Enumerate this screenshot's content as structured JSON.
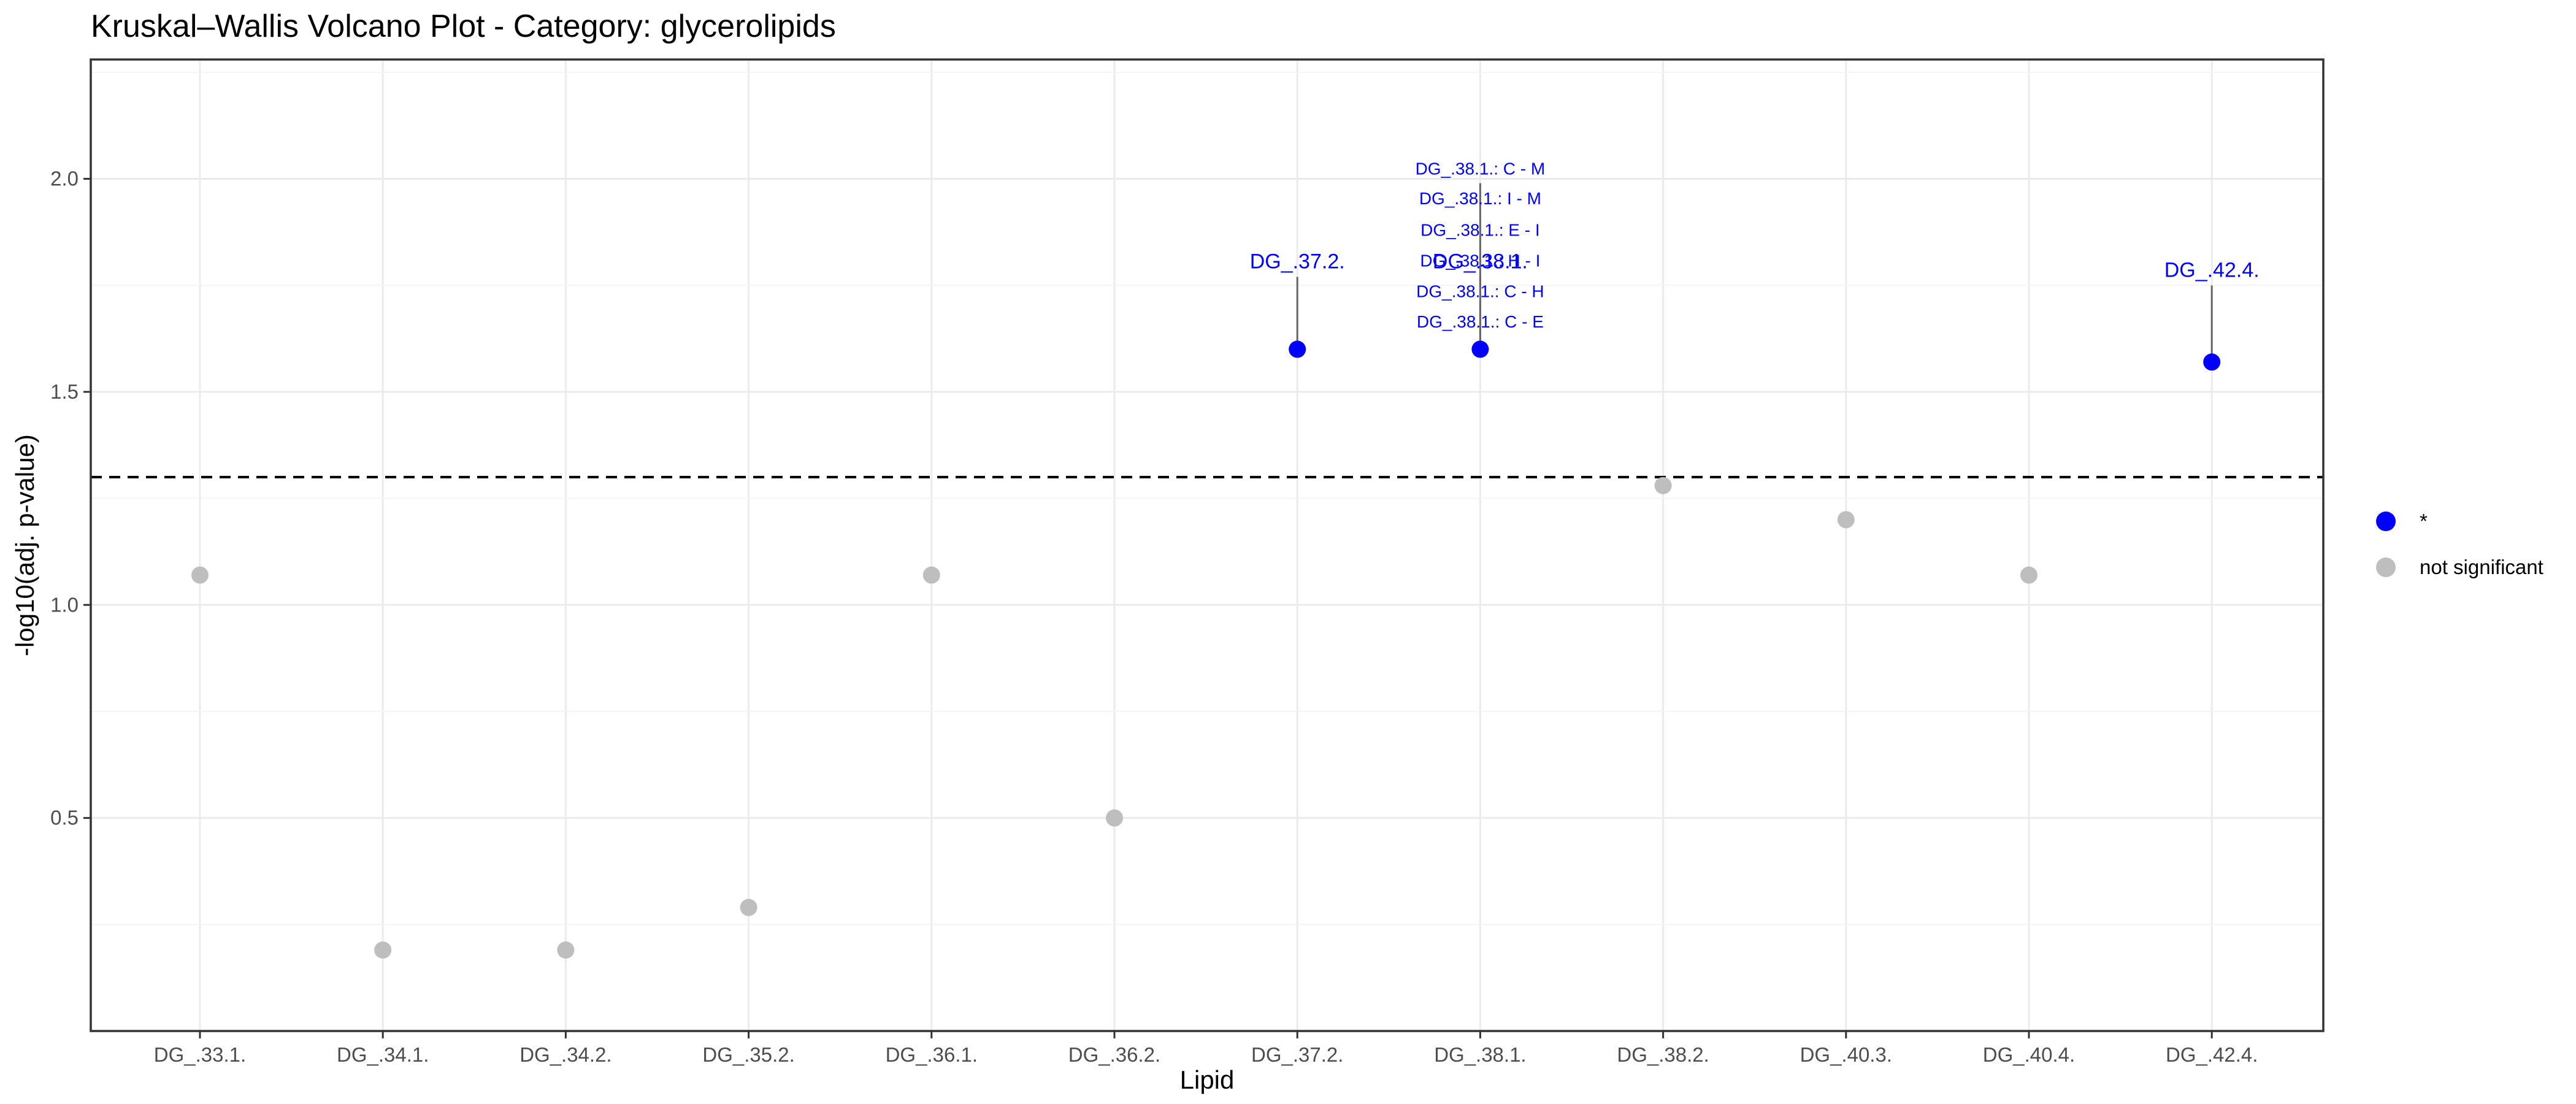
{
  "chart_data": {
    "type": "scatter",
    "title": "Kruskal–Wallis Volcano Plot - Category: glycerolipids",
    "xlabel": "Lipid",
    "ylabel": "-log10(adj. p-value)",
    "categories": [
      "DG_.33.1.",
      "DG_.34.1.",
      "DG_.34.2.",
      "DG_.35.2.",
      "DG_.36.1.",
      "DG_.36.2.",
      "DG_.37.2.",
      "DG_.38.1.",
      "DG_.38.2.",
      "DG_.40.3.",
      "DG_.40.4.",
      "DG_.42.4."
    ],
    "ylim": [
      0.0,
      2.28
    ],
    "yticks": [
      0.5,
      1.0,
      1.5,
      2.0
    ],
    "ytick_labels": [
      "0.5",
      "1.0",
      "1.5",
      "2.0"
    ],
    "threshold": 1.3,
    "points": [
      {
        "x": "DG_.33.1.",
        "y": 1.07,
        "group": "not significant"
      },
      {
        "x": "DG_.34.1.",
        "y": 0.19,
        "group": "not significant"
      },
      {
        "x": "DG_.34.2.",
        "y": 0.19,
        "group": "not significant"
      },
      {
        "x": "DG_.35.2.",
        "y": 0.29,
        "group": "not significant"
      },
      {
        "x": "DG_.36.1.",
        "y": 1.07,
        "group": "not significant"
      },
      {
        "x": "DG_.36.2.",
        "y": 0.5,
        "group": "not significant"
      },
      {
        "x": "DG_.37.2.",
        "y": 1.6,
        "group": "*"
      },
      {
        "x": "DG_.38.1.",
        "y": 1.6,
        "group": "*"
      },
      {
        "x": "DG_.38.2.",
        "y": 1.28,
        "group": "not significant"
      },
      {
        "x": "DG_.40.3.",
        "y": 1.2,
        "group": "not significant"
      },
      {
        "x": "DG_.40.4.",
        "y": 1.07,
        "group": "not significant"
      },
      {
        "x": "DG_.42.4.",
        "y": 1.57,
        "group": "*"
      }
    ],
    "annotations": [
      {
        "x": "DG_.37.2.",
        "y": 1.6,
        "text": "DG_.37.2.",
        "label_y": 1.79,
        "size": "big"
      },
      {
        "x": "DG_.38.1.",
        "y": 1.6,
        "text": "DG_.38.1.",
        "label_y": 1.79,
        "size": "big"
      },
      {
        "x": "DG_.42.4.",
        "y": 1.57,
        "text": "DG_.42.4.",
        "label_y": 1.77,
        "size": "big"
      },
      {
        "x": "DG_.38.1.",
        "y": 1.6,
        "text": "DG_.38.1.: C - M",
        "label_y": 2.01,
        "size": "small"
      },
      {
        "x": "DG_.38.1.",
        "y": 1.6,
        "text": "DG_.38.1.: I - M",
        "label_y": 1.94,
        "size": "small"
      },
      {
        "x": "DG_.38.1.",
        "y": 1.6,
        "text": "DG_.38.1.: E - I",
        "label_y": 1.866,
        "size": "small"
      },
      {
        "x": "DG_.38.1.",
        "y": 1.6,
        "text": "DG_.38.1.: H - I",
        "label_y": 1.794,
        "size": "small"
      },
      {
        "x": "DG_.38.1.",
        "y": 1.6,
        "text": "DG_.38.1.: C - H",
        "label_y": 1.722,
        "size": "small"
      },
      {
        "x": "DG_.38.1.",
        "y": 1.6,
        "text": "DG_.38.1.: C - E",
        "label_y": 1.651,
        "size": "small"
      }
    ],
    "legend": [
      {
        "label": "*",
        "color": "#0000ff"
      },
      {
        "label": "not significant",
        "color": "#bebebe"
      }
    ],
    "legend_position": "right",
    "grid": true
  }
}
